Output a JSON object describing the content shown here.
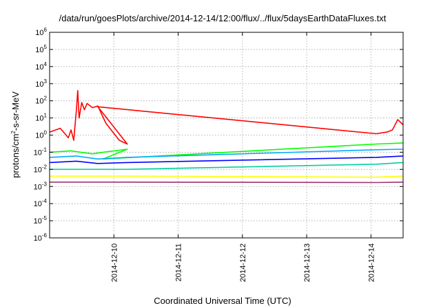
{
  "chart_data": {
    "type": "line",
    "title": "/data/run/goesPlots/archive/2014-12-14/12:00/flux/../flux/5daysEarthDataFluxes.txt",
    "xlabel": "Coordinated Universal Time (UTC)",
    "ylabel": {
      "prefix": "protons/cm",
      "sup": "2",
      "suffix": "-s-sr-MeV"
    },
    "x_axis": {
      "type": "time",
      "range": [
        "2014-12-09T00:00",
        "2014-12-14T12:00"
      ],
      "ticks": [
        "2014-12-10",
        "2014-12-11",
        "2014-12-12",
        "2014-12-13",
        "2014-12-14"
      ],
      "grid": true
    },
    "y_axis": {
      "type": "log",
      "range": [
        1e-06,
        1000000.0
      ],
      "ticks": [
        {
          "base": "10",
          "exp": "-6",
          "value": 1e-06
        },
        {
          "base": "10",
          "exp": "-5",
          "value": 1e-05
        },
        {
          "base": "10",
          "exp": "-4",
          "value": 0.0001
        },
        {
          "base": "10",
          "exp": "-3",
          "value": 0.001
        },
        {
          "base": "10",
          "exp": "-2",
          "value": 0.01
        },
        {
          "base": "10",
          "exp": "-1",
          "value": 0.1
        },
        {
          "base": "10",
          "exp": "0",
          "value": 1
        },
        {
          "base": "10",
          "exp": "1",
          "value": 10
        },
        {
          "base": "10",
          "exp": "2",
          "value": 100
        },
        {
          "base": "10",
          "exp": "3",
          "value": 1000
        },
        {
          "base": "10",
          "exp": "4",
          "value": 10000
        },
        {
          "base": "10",
          "exp": "5",
          "value": 100000
        },
        {
          "base": "10",
          "exp": "6",
          "value": 1000000
        }
      ],
      "grid": true
    },
    "series": [
      {
        "color": "#ff0000",
        "points": [
          [
            "2014-12-09T00:00",
            1.5
          ],
          [
            "2014-12-09T04:00",
            2.5
          ],
          [
            "2014-12-09T07:00",
            0.7
          ],
          [
            "2014-12-09T08:00",
            2
          ],
          [
            "2014-12-09T09:00",
            0.5
          ],
          [
            "2014-12-09T10:00",
            30
          ],
          [
            "2014-12-09T10:30",
            400
          ],
          [
            "2014-12-09T11:00",
            10
          ],
          [
            "2014-12-09T12:00",
            80
          ],
          [
            "2014-12-09T13:00",
            30
          ],
          [
            "2014-12-09T14:00",
            70
          ],
          [
            "2014-12-09T16:00",
            40
          ],
          [
            "2014-12-09T18:00",
            50
          ],
          [
            "2014-12-09T21:00",
            5
          ],
          [
            "2014-12-10T02:00",
            0.5
          ],
          [
            "2014-12-10T05:00",
            0.3
          ],
          [
            "2014-12-09T18:00",
            45
          ],
          [
            "2014-12-14T02:00",
            1.2
          ],
          [
            "2014-12-14T06:00",
            1.5
          ],
          [
            "2014-12-14T08:00",
            2
          ],
          [
            "2014-12-14T10:00",
            8
          ],
          [
            "2014-12-14T12:00",
            4
          ]
        ]
      },
      {
        "color": "#00ff00",
        "points": [
          [
            "2014-12-09T00:00",
            0.1
          ],
          [
            "2014-12-09T08:00",
            0.12
          ],
          [
            "2014-12-09T16:00",
            0.08
          ],
          [
            "2014-12-09T20:00",
            0.1
          ],
          [
            "2014-12-10T05:00",
            0.15
          ],
          [
            "2014-12-09T20:00",
            0.04
          ],
          [
            "2014-12-14T02:00",
            0.3
          ],
          [
            "2014-12-14T12:00",
            0.35
          ]
        ]
      },
      {
        "color": "#00aaff",
        "points": [
          [
            "2014-12-09T00:00",
            0.05
          ],
          [
            "2014-12-09T10:00",
            0.06
          ],
          [
            "2014-12-09T18:00",
            0.04
          ],
          [
            "2014-12-10T05:00",
            0.05
          ],
          [
            "2014-12-14T02:00",
            0.14
          ],
          [
            "2014-12-14T12:00",
            0.15
          ]
        ]
      },
      {
        "color": "#0000ff",
        "points": [
          [
            "2014-12-09T00:00",
            0.025
          ],
          [
            "2014-12-09T10:00",
            0.03
          ],
          [
            "2014-12-09T18:00",
            0.022
          ],
          [
            "2014-12-10T05:00",
            0.025
          ],
          [
            "2014-12-14T02:00",
            0.05
          ],
          [
            "2014-12-14T12:00",
            0.06
          ]
        ]
      },
      {
        "color": "#00d0a0",
        "points": [
          [
            "2014-12-09T00:00",
            0.01
          ],
          [
            "2014-12-10T05:00",
            0.01
          ],
          [
            "2014-12-14T02:00",
            0.02
          ],
          [
            "2014-12-14T12:00",
            0.025
          ]
        ]
      },
      {
        "color": "#ffff00",
        "points": [
          [
            "2014-12-09T00:00",
            0.004
          ],
          [
            "2014-12-10T05:00",
            0.004
          ],
          [
            "2014-12-14T02:00",
            0.0035
          ],
          [
            "2014-12-14T12:00",
            0.004
          ]
        ]
      },
      {
        "color": "#a0306e",
        "points": [
          [
            "2014-12-09T00:00",
            0.0018
          ],
          [
            "2014-12-10T05:00",
            0.0018
          ],
          [
            "2014-12-14T02:00",
            0.0017
          ],
          [
            "2014-12-14T12:00",
            0.0018
          ]
        ]
      }
    ]
  }
}
